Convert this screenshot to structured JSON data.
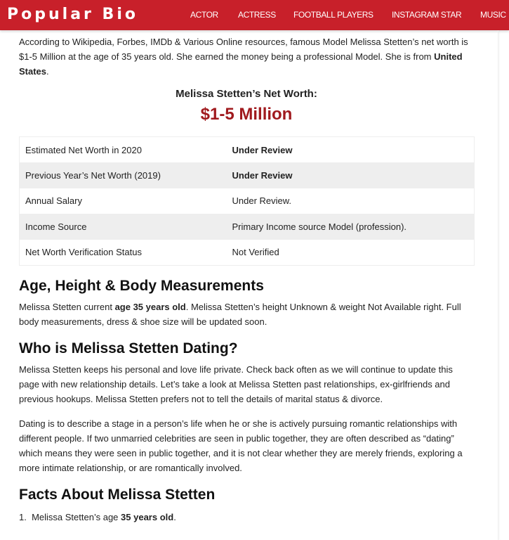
{
  "header": {
    "logo": "Popular Bio",
    "nav": [
      "ACTOR",
      "ACTRESS",
      "FOOTBALL PLAYERS",
      "INSTAGRAM STAR",
      "MUSIC"
    ],
    "brand_color": "#c8202a"
  },
  "intro": {
    "text1": "According to Wikipedia, Forbes, IMDb & Various Online resources, famous Model Melissa Stetten’s net worth is $1-5 Million at the age of 35 years old. She earned the money being a professional Model. She is from ",
    "bold": "United States",
    "text2": "."
  },
  "net_worth": {
    "title": "Melissa Stetten’s Net Worth:",
    "amount": "$1-5 Million",
    "amount_color": "#a01a1e"
  },
  "table": [
    {
      "label": "Estimated Net Worth in 2020",
      "value": "Under Review",
      "bold": true
    },
    {
      "label": "Previous Year’s Net Worth (2019)",
      "value": "Under Review",
      "bold": true
    },
    {
      "label": "Annual Salary",
      "value": "Under Review.",
      "bold": false
    },
    {
      "label": "Income Source",
      "value": "Primary Income source Model (profession).",
      "bold": false
    },
    {
      "label": "Net Worth Verification Status",
      "value": "Not Verified",
      "bold": false
    }
  ],
  "age": {
    "heading": "Age, Height & Body Measurements",
    "t1": "Melissa Stetten current ",
    "b1": "age 35 years old",
    "t2": ". Melissa Stetten’s height Unknown & weight Not Available right. Full body measurements, dress & shoe size will be updated soon."
  },
  "dating": {
    "heading": "Who is Melissa Stetten Dating?",
    "p1": "Melissa Stetten keeps his personal and love life private. Check back often as we will continue to update this page with new relationship details. Let’s take a look at Melissa Stetten past relationships, ex-girlfriends and previous hookups. Melissa Stetten prefers not to tell the details of marital status & divorce.",
    "p2": "Dating is to describe a stage in a person’s life when he or she is actively pursuing romantic relationships with different people. If two unmarried celebrities are seen in public together, they are often described as “dating” which means they were seen in public together, and it is not clear whether they are merely friends, exploring a more intimate relationship, or are romantically involved."
  },
  "facts": {
    "heading": "Facts About Melissa Stetten",
    "items": [
      {
        "num": "1.",
        "text": "Melissa Stetten’s age ",
        "bold": "35 years old",
        "end": "."
      }
    ]
  }
}
